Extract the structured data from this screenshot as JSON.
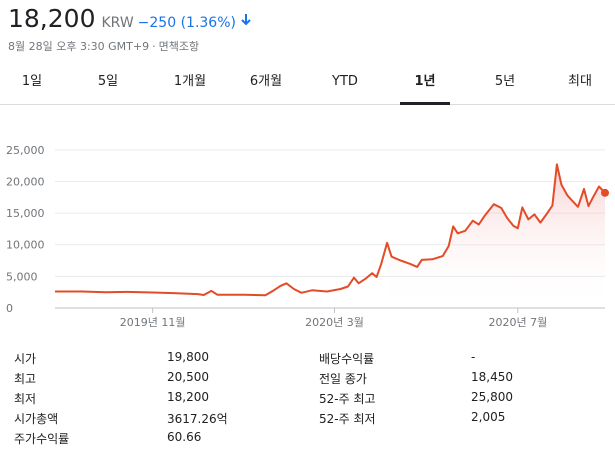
{
  "quote": {
    "price": "18,200",
    "currency": "KRW",
    "change": "−250 (1.36%)",
    "direction": "down",
    "timestamp": "8월 28일 오후 3:30 GMT+9",
    "disclaimer": "면책조항"
  },
  "tabs": [
    {
      "label": "1일",
      "active": false
    },
    {
      "label": "5일",
      "active": false
    },
    {
      "label": "1개월",
      "active": false
    },
    {
      "label": "6개월",
      "active": false
    },
    {
      "label": "YTD",
      "active": false
    },
    {
      "label": "1년",
      "active": true
    },
    {
      "label": "5년",
      "active": false
    },
    {
      "label": "최대",
      "active": false
    }
  ],
  "colors": {
    "line": "#e34c26",
    "change": "#1a73e8",
    "grid": "#e8eaed"
  },
  "chart_data": {
    "type": "area",
    "y_ticks": [
      "25,000",
      "20,000",
      "15,000",
      "10,000",
      "5,000",
      "0"
    ],
    "x_ticks": [
      "2019년 11월",
      "2020년 3월",
      "2020년 7월"
    ],
    "ylim": [
      0,
      27500
    ],
    "x_domain": [
      "2019-08-28",
      "2020-08-28"
    ],
    "x_tick_dates": [
      "2019-11-01",
      "2020-03-01",
      "2020-07-01"
    ],
    "points": [
      [
        "2019-08-28",
        2600
      ],
      [
        "2019-09-15",
        2600
      ],
      [
        "2019-10-01",
        2500
      ],
      [
        "2019-10-15",
        2550
      ],
      [
        "2019-11-01",
        2450
      ],
      [
        "2019-11-15",
        2350
      ],
      [
        "2019-12-01",
        2200
      ],
      [
        "2019-12-05",
        2050
      ],
      [
        "2019-12-10",
        2700
      ],
      [
        "2019-12-14",
        2100
      ],
      [
        "2020-01-01",
        2100
      ],
      [
        "2020-01-15",
        2000
      ],
      [
        "2020-01-20",
        2700
      ],
      [
        "2020-01-25",
        3500
      ],
      [
        "2020-01-29",
        3900
      ],
      [
        "2020-02-03",
        3000
      ],
      [
        "2020-02-08",
        2400
      ],
      [
        "2020-02-15",
        2800
      ],
      [
        "2020-02-25",
        2600
      ],
      [
        "2020-03-05",
        3000
      ],
      [
        "2020-03-10",
        3400
      ],
      [
        "2020-03-14",
        4800
      ],
      [
        "2020-03-17",
        3900
      ],
      [
        "2020-03-22",
        4700
      ],
      [
        "2020-03-26",
        5500
      ],
      [
        "2020-03-29",
        4900
      ],
      [
        "2020-04-01",
        6900
      ],
      [
        "2020-04-05",
        10300
      ],
      [
        "2020-04-08",
        8100
      ],
      [
        "2020-04-14",
        7500
      ],
      [
        "2020-04-20",
        7000
      ],
      [
        "2020-04-25",
        6500
      ],
      [
        "2020-04-28",
        7600
      ],
      [
        "2020-05-05",
        7700
      ],
      [
        "2020-05-12",
        8200
      ],
      [
        "2020-05-16",
        9800
      ],
      [
        "2020-05-19",
        12900
      ],
      [
        "2020-05-22",
        11800
      ],
      [
        "2020-05-27",
        12200
      ],
      [
        "2020-06-01",
        13800
      ],
      [
        "2020-06-05",
        13200
      ],
      [
        "2020-06-09",
        14600
      ],
      [
        "2020-06-15",
        16400
      ],
      [
        "2020-06-20",
        15800
      ],
      [
        "2020-06-24",
        14200
      ],
      [
        "2020-06-28",
        13000
      ],
      [
        "2020-07-01",
        12600
      ],
      [
        "2020-07-04",
        15900
      ],
      [
        "2020-07-08",
        14000
      ],
      [
        "2020-07-12",
        14800
      ],
      [
        "2020-07-16",
        13500
      ],
      [
        "2020-07-20",
        14800
      ],
      [
        "2020-07-24",
        16200
      ],
      [
        "2020-07-27",
        22700
      ],
      [
        "2020-07-30",
        19500
      ],
      [
        "2020-08-03",
        17800
      ],
      [
        "2020-08-06",
        17000
      ],
      [
        "2020-08-10",
        16000
      ],
      [
        "2020-08-14",
        18800
      ],
      [
        "2020-08-17",
        16100
      ],
      [
        "2020-08-20",
        17500
      ],
      [
        "2020-08-24",
        19200
      ],
      [
        "2020-08-28",
        18200
      ]
    ]
  },
  "stats": {
    "left": [
      {
        "label": "시가",
        "value": "19,800"
      },
      {
        "label": "최고",
        "value": "20,500"
      },
      {
        "label": "최저",
        "value": "18,200"
      },
      {
        "label": "시가총액",
        "value": "3617.26억"
      },
      {
        "label": "주가수익률",
        "value": "60.66"
      }
    ],
    "right": [
      {
        "label": "배당수익률",
        "value": "-"
      },
      {
        "label": "전일 종가",
        "value": "18,450"
      },
      {
        "label": "52-주 최고",
        "value": "25,800"
      },
      {
        "label": "52-주 최저",
        "value": "2,005"
      }
    ]
  }
}
